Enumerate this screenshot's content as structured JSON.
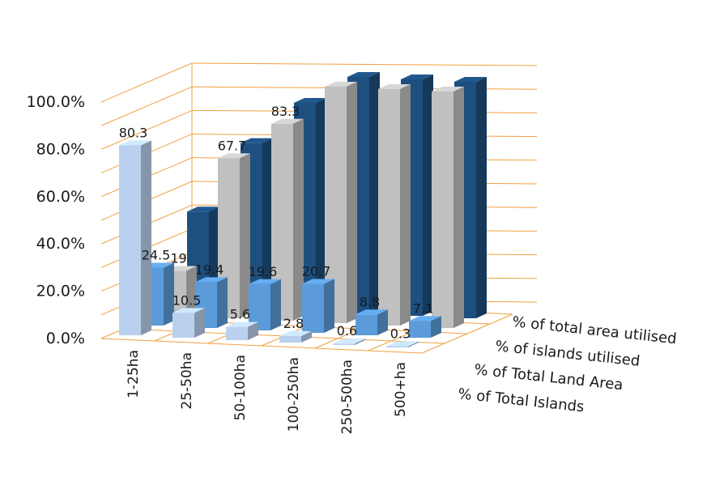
{
  "chart_data": {
    "type": "bar",
    "subtype": "3d-column",
    "categories": [
      "1-25ha",
      "25-50ha",
      "50-100ha",
      "100-250ha",
      "250-500ha",
      "500+ha"
    ],
    "y_ticks": [
      "0.0%",
      "20.0%",
      "40.0%",
      "60.0%",
      "80.0%",
      "100.0%"
    ],
    "ylim": [
      0,
      100
    ],
    "grid": true,
    "series": [
      {
        "name": "% of Total Islands",
        "values": [
          80.3,
          10.5,
          5.6,
          2.8,
          0.6,
          0.3
        ],
        "labels": [
          "80.3",
          "10.5",
          "5.6",
          "2.8",
          "0.6",
          "0.3"
        ],
        "color": "#b9d1ee"
      },
      {
        "name": "% of Total Land Area",
        "values": [
          24.5,
          19.4,
          19.6,
          20.7,
          8.8,
          7.1
        ],
        "labels": [
          "24.5",
          "19.4",
          "19.6",
          "20.7",
          "8.8",
          "7.1"
        ],
        "color": "#5b9bd9"
      },
      {
        "name": "% of islands utilised",
        "values": [
          19,
          67.7,
          83.3,
          100,
          100,
          100
        ],
        "labels": [
          "19",
          "67.7",
          "83.3",
          "",
          "",
          ""
        ],
        "color": "#c0c0c0"
      },
      {
        "name": "% of total area utilised",
        "values": [
          40,
          70,
          88,
          100,
          100,
          100
        ],
        "labels": [
          "",
          "",
          "",
          "",
          "",
          ""
        ],
        "color": "#1d4f7f"
      }
    ],
    "highlight_label_color": "#2a6aa7",
    "gridline_color": "#f0a040"
  }
}
